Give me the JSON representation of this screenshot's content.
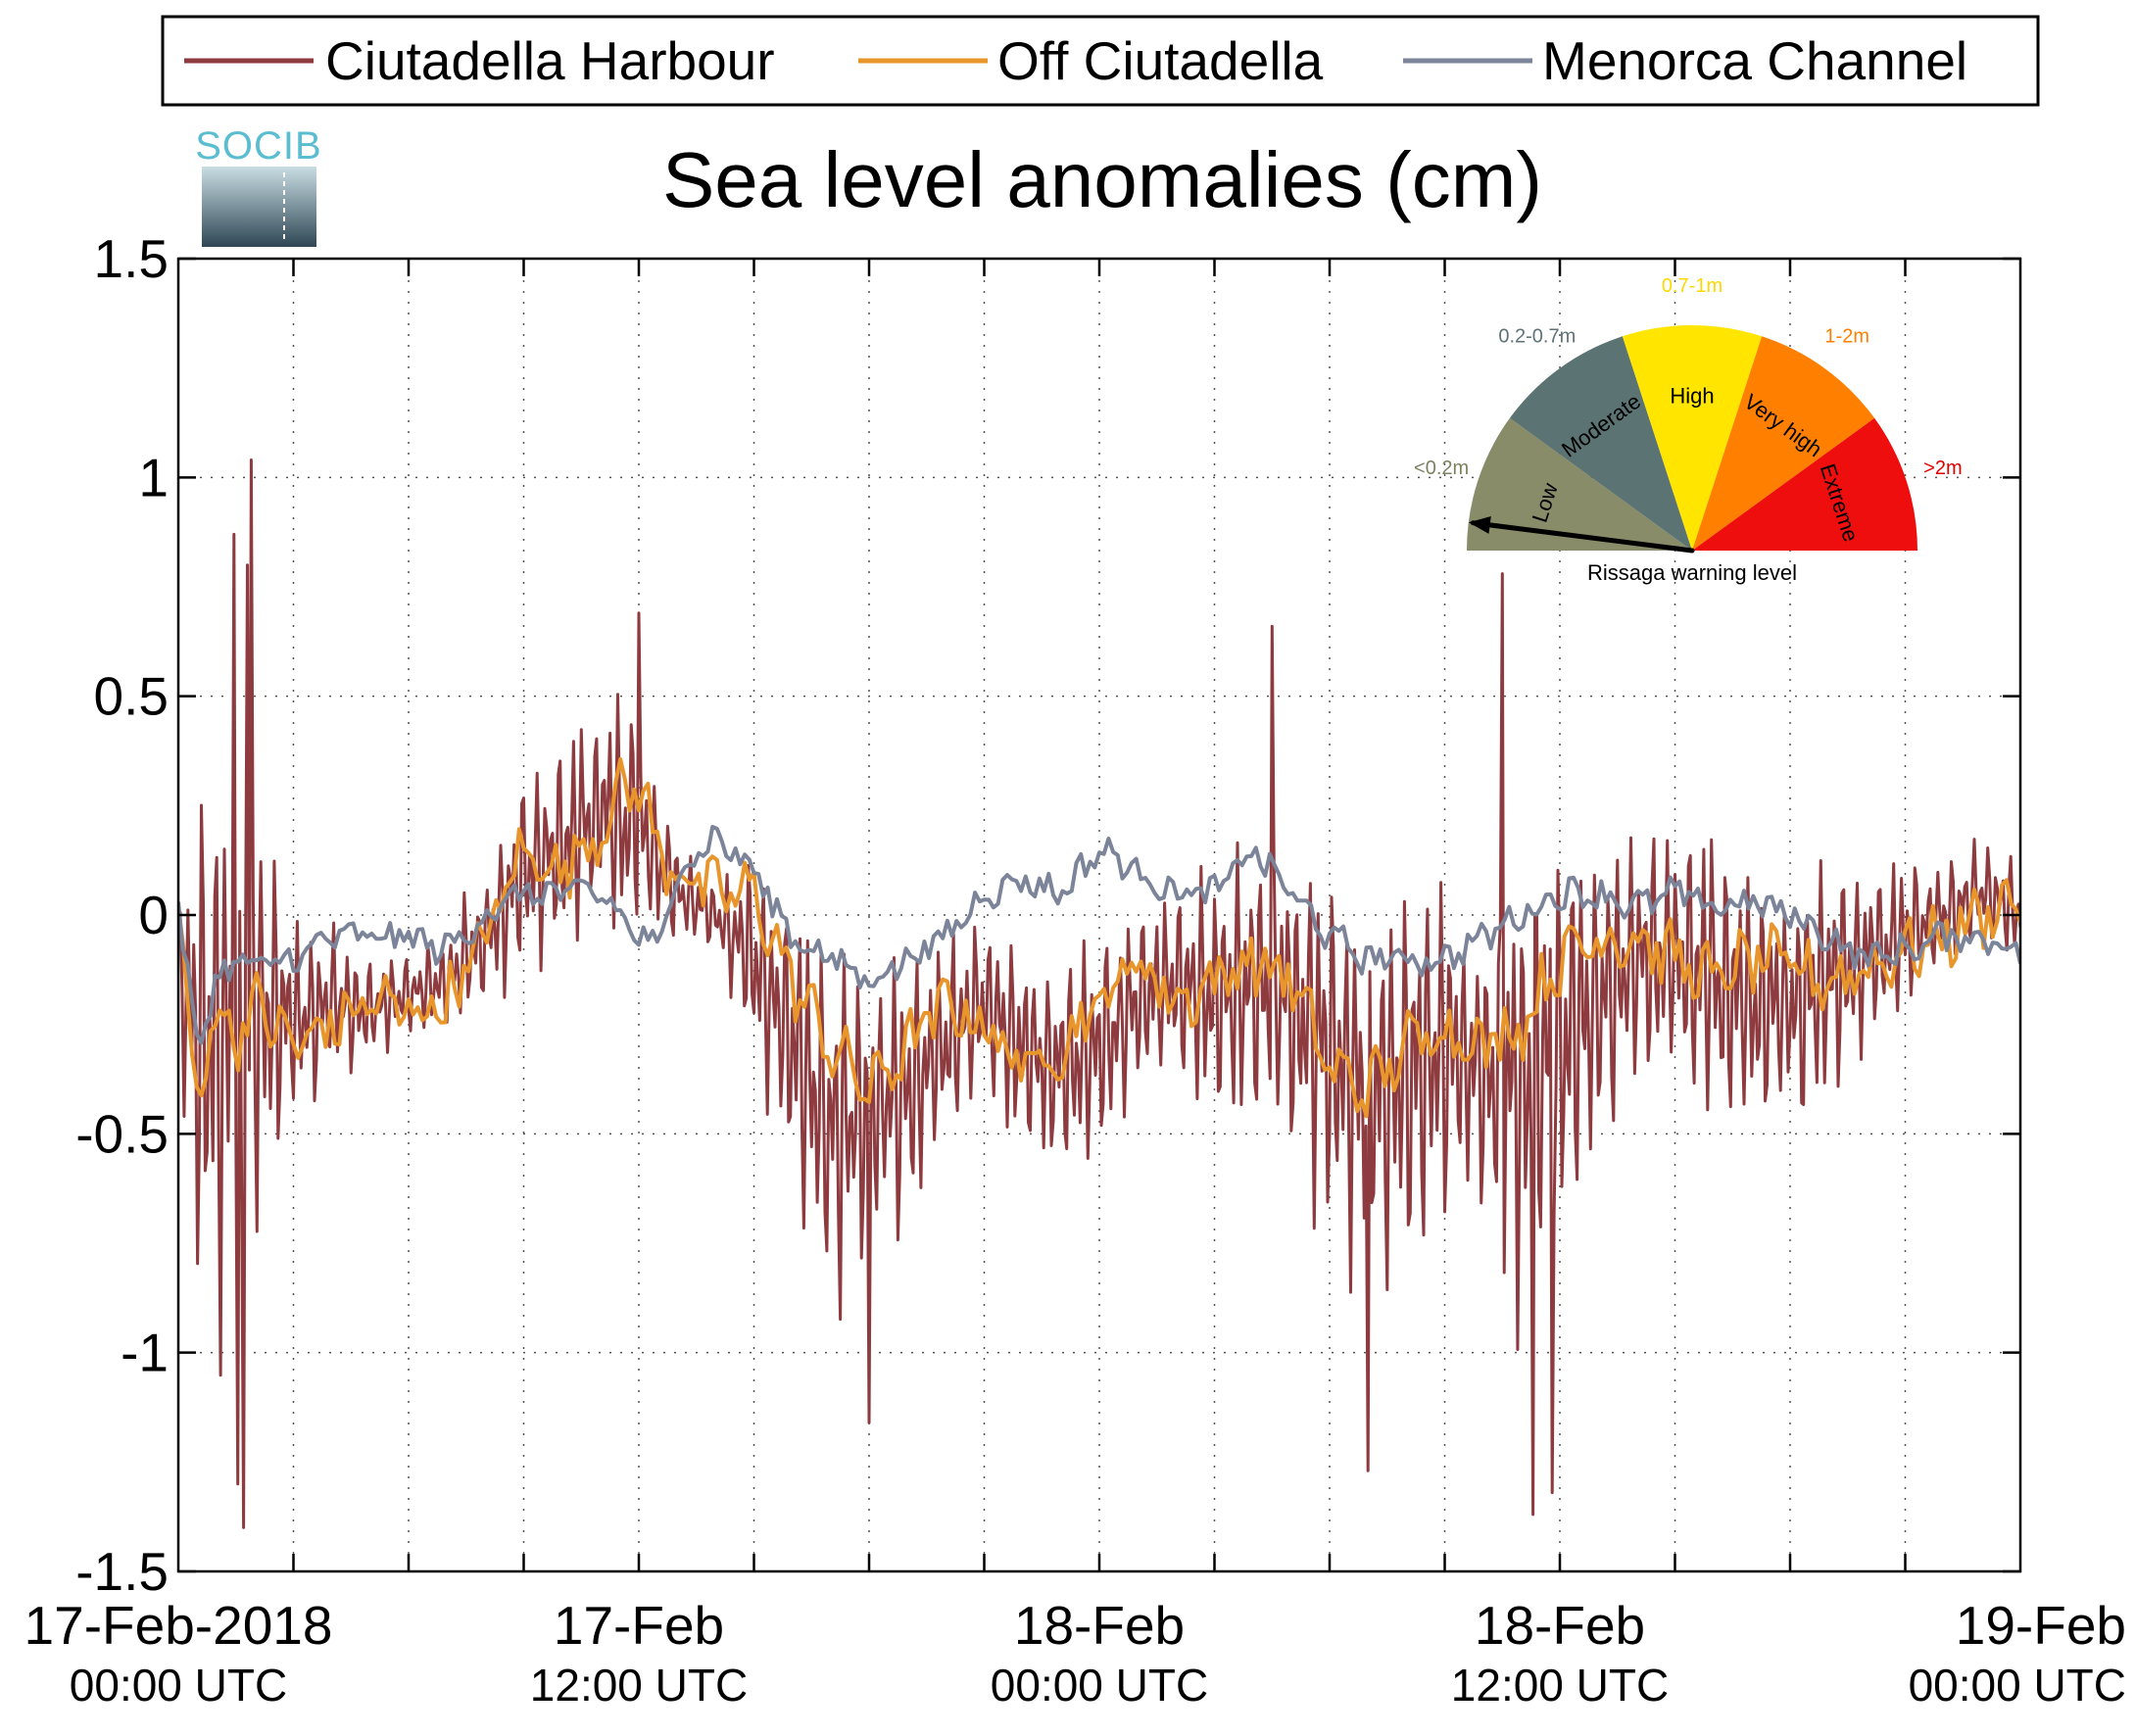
{
  "logo": {
    "text": "SOCIB",
    "colors": {
      "text": "#5bbdd0",
      "top": "#c9dde3",
      "bottom": "#2f4755"
    }
  },
  "chart_data": {
    "type": "line",
    "title": "Sea level anomalies (cm)",
    "xlabel": "",
    "ylabel": "",
    "ylim": [
      -1.5,
      1.5
    ],
    "y_ticks": [
      {
        "value": 1.5,
        "label": "1.5"
      },
      {
        "value": 1,
        "label": "1"
      },
      {
        "value": 0.5,
        "label": "0.5"
      },
      {
        "value": 0,
        "label": "0"
      },
      {
        "value": -0.5,
        "label": "-0.5"
      },
      {
        "value": -1,
        "label": "-1"
      },
      {
        "value": -1.5,
        "label": "-1.5"
      }
    ],
    "x_range_hours": [
      0,
      48
    ],
    "x_minor_step_hours": 3,
    "x_ticks": [
      {
        "hour": 0,
        "date": "17-Feb-2018",
        "time": "00:00 UTC"
      },
      {
        "hour": 12,
        "date": "17-Feb",
        "time": "12:00 UTC"
      },
      {
        "hour": 24,
        "date": "18-Feb",
        "time": "00:00 UTC"
      },
      {
        "hour": 36,
        "date": "18-Feb",
        "time": "12:00 UTC"
      },
      {
        "hour": 48,
        "date": "19-Feb",
        "time": "00:00 UTC"
      }
    ],
    "grid": true,
    "grid_style": "dotted",
    "legend_position": "top, horizontal",
    "series": [
      {
        "name": "Ciutadella Harbour",
        "color": "#8e3b3f",
        "envelope_hours": [
          0,
          0.5,
          1,
          1.5,
          2,
          3,
          4,
          5,
          6,
          7,
          8,
          9,
          10,
          11,
          11.5,
          12,
          13,
          14,
          15,
          16,
          17,
          18,
          19,
          20,
          21,
          22,
          23,
          24,
          25,
          26,
          27,
          28,
          29,
          30,
          31,
          32,
          33,
          34,
          35,
          36,
          37,
          38,
          39,
          40,
          41,
          42,
          43,
          44,
          45,
          46,
          47,
          48
        ],
        "envelope_center": [
          -0.1,
          -0.3,
          -0.28,
          -0.3,
          -0.2,
          -0.25,
          -0.2,
          -0.22,
          -0.18,
          -0.15,
          -0.05,
          0.1,
          0.15,
          0.25,
          0.2,
          0.2,
          0.05,
          0,
          -0.1,
          -0.3,
          -0.5,
          -0.45,
          -0.4,
          -0.3,
          -0.2,
          -0.3,
          -0.35,
          -0.3,
          -0.2,
          -0.15,
          -0.2,
          -0.15,
          -0.2,
          -0.3,
          -0.4,
          -0.35,
          -0.3,
          -0.35,
          -0.4,
          -0.3,
          -0.2,
          -0.1,
          -0.1,
          -0.15,
          -0.2,
          -0.2,
          -0.15,
          -0.1,
          -0.05,
          0,
          0.05,
          0
        ],
        "envelope_amplitude": [
          0.15,
          0.7,
          0.9,
          0.85,
          0.6,
          0.3,
          0.2,
          0.15,
          0.1,
          0.15,
          0.2,
          0.3,
          0.3,
          0.3,
          0.35,
          0.3,
          0.15,
          0.1,
          0.3,
          0.4,
          0.5,
          0.45,
          0.4,
          0.3,
          0.25,
          0.3,
          0.35,
          0.3,
          0.3,
          0.3,
          0.35,
          0.4,
          0.45,
          0.5,
          0.55,
          0.6,
          0.45,
          0.4,
          0.7,
          0.65,
          0.5,
          0.35,
          0.4,
          0.45,
          0.4,
          0.35,
          0.35,
          0.3,
          0.2,
          0.15,
          0.15,
          0.15
        ],
        "extremes": [
          {
            "hour": 1.45,
            "value": 0.87
          },
          {
            "hour": 1.55,
            "value": -1.3
          },
          {
            "hour": 1.7,
            "value": -1.4
          },
          {
            "hour": 1.8,
            "value": 0.8
          },
          {
            "hour": 1.9,
            "value": 1.04
          },
          {
            "hour": 12.0,
            "value": 0.69
          },
          {
            "hour": 18.0,
            "value": -1.16
          },
          {
            "hour": 28.5,
            "value": 0.66
          },
          {
            "hour": 31.0,
            "value": -1.27
          },
          {
            "hour": 34.5,
            "value": 0.78
          },
          {
            "hour": 35.3,
            "value": -1.37
          },
          {
            "hour": 35.8,
            "value": -1.32
          }
        ]
      },
      {
        "name": "Off Ciutadella",
        "color": "#e8962c",
        "x_hours": [
          0,
          0.5,
          1,
          1.5,
          2,
          3,
          4,
          5,
          6,
          7,
          8,
          9,
          10,
          11,
          11.5,
          12,
          12.5,
          13,
          14,
          15,
          16,
          17,
          18,
          19,
          20,
          21,
          22,
          23,
          24,
          25,
          26,
          27,
          28,
          29,
          30,
          31,
          32,
          33,
          34,
          35,
          36,
          37,
          38,
          39,
          40,
          41,
          42,
          43,
          44,
          45,
          46,
          47,
          48
        ],
        "y": [
          0,
          -0.45,
          -0.2,
          -0.28,
          -0.2,
          -0.3,
          -0.25,
          -0.2,
          -0.22,
          -0.2,
          -0.05,
          0.15,
          0.1,
          0.2,
          0.28,
          0.3,
          0.15,
          0.1,
          0.05,
          0.05,
          -0.15,
          -0.3,
          -0.4,
          -0.3,
          -0.2,
          -0.25,
          -0.35,
          -0.3,
          -0.2,
          -0.1,
          -0.2,
          -0.15,
          -0.1,
          -0.15,
          -0.35,
          -0.4,
          -0.3,
          -0.25,
          -0.3,
          -0.25,
          -0.1,
          -0.05,
          -0.05,
          -0.1,
          -0.15,
          -0.1,
          -0.12,
          -0.15,
          -0.12,
          -0.08,
          -0.05,
          0,
          0.05
        ],
        "noise_amplitude": 0.06
      },
      {
        "name": "Menorca Channel",
        "color": "#7c8499",
        "x_hours": [
          0,
          0.5,
          1,
          1.5,
          2,
          3,
          4,
          5,
          6,
          7,
          8,
          9,
          10,
          11,
          12,
          12.5,
          13,
          14,
          15,
          16,
          17,
          18,
          19,
          20,
          21,
          22,
          23,
          24,
          25,
          26,
          27,
          28,
          29,
          30,
          31,
          32,
          33,
          34,
          35,
          36,
          37,
          38,
          39,
          40,
          41,
          42,
          43,
          44,
          45,
          46,
          47,
          48
        ],
        "y": [
          0,
          -0.3,
          -0.15,
          -0.1,
          -0.12,
          -0.1,
          -0.05,
          -0.05,
          -0.05,
          -0.08,
          0,
          0.05,
          0.05,
          0.05,
          -0.05,
          -0.08,
          0.1,
          0.18,
          0.1,
          -0.05,
          -0.1,
          -0.15,
          -0.1,
          -0.05,
          0.05,
          0.08,
          0.05,
          0.15,
          0.1,
          0.05,
          0.05,
          0.15,
          0.05,
          -0.05,
          -0.1,
          -0.1,
          -0.1,
          -0.05,
          0,
          0.05,
          0.05,
          0.02,
          0.05,
          0.02,
          0.03,
          0,
          -0.05,
          -0.1,
          -0.08,
          -0.05,
          -0.05,
          -0.08
        ],
        "noise_amplitude": 0.03
      }
    ]
  },
  "gauge": {
    "title": "Rissaga warning level",
    "needle_value_m": 0.04,
    "sectors": [
      {
        "name": "Low",
        "range": "<0.2m",
        "color": "#888c69",
        "label_color": "#7e8160"
      },
      {
        "name": "Moderate",
        "range": "0.2-0.7m",
        "color": "#5b7372",
        "label_color": "#5f7379"
      },
      {
        "name": "High",
        "range": "0.7-1m",
        "color": "#ffe500",
        "label_color": "#ffd800"
      },
      {
        "name": "Very high",
        "range": "1-2m",
        "color": "#ff7f00",
        "label_color": "#ff7f00"
      },
      {
        "name": "Extreme",
        "range": ">2m",
        "color": "#ee0e0e",
        "label_color": "#e00000"
      }
    ]
  }
}
